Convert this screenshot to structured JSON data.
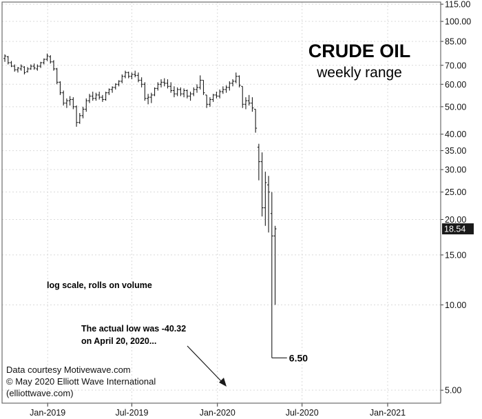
{
  "chart_data": {
    "type": "ohlc",
    "title": "CRUDE OIL",
    "subtitle": "weekly range",
    "scale": "log",
    "ylim": [
      4.5,
      117
    ],
    "y_axis_position": "right",
    "y_ticks": [
      "115.00",
      "100.00",
      "85.00",
      "70.00",
      "60.00",
      "50.00",
      "40.00",
      "35.00",
      "30.00",
      "25.00",
      "20.00",
      "15.00",
      "10.00",
      "5.00"
    ],
    "x_ticks": [
      "Jan-2019",
      "Jul-2019",
      "Jan-2020",
      "Jul-2020",
      "Jan-2021"
    ],
    "x_tick_dates": [
      "2019-01-01",
      "2019-07-01",
      "2020-01-01",
      "2020-07-01",
      "2021-01-01"
    ],
    "xlim": [
      "2018-09-25",
      "2021-04-25"
    ],
    "grid": true,
    "last_value_label": "18.54",
    "annotations": {
      "scale_note": "log scale, rolls on volume",
      "low_note_line1": "The actual low was -40.32",
      "low_note_line2": "on April 20, 2020...",
      "low_value": "6.50"
    },
    "credits": {
      "line1": "Data courtesy Motivewave.com",
      "line2": "© May 2020 Elliott Wave International",
      "line3": "(elliottwave.com)"
    },
    "weekly_bars": [
      {
        "date": "2018-10-01",
        "high": 76.5,
        "low": 72.0,
        "open": 74.0,
        "close": 75.5
      },
      {
        "date": "2018-10-08",
        "high": 75.5,
        "low": 70.5,
        "open": 75.0,
        "close": 71.5
      },
      {
        "date": "2018-10-15",
        "high": 72.5,
        "low": 69.0,
        "open": 71.5,
        "close": 69.5
      },
      {
        "date": "2018-10-22",
        "high": 70.5,
        "low": 66.5,
        "open": 69.5,
        "close": 67.5
      },
      {
        "date": "2018-10-29",
        "high": 69.0,
        "low": 66.0,
        "open": 67.5,
        "close": 68.5
      },
      {
        "date": "2018-11-05",
        "high": 70.5,
        "low": 67.0,
        "open": 68.0,
        "close": 69.5
      },
      {
        "date": "2018-11-12",
        "high": 69.5,
        "low": 65.0,
        "open": 69.0,
        "close": 66.0
      },
      {
        "date": "2018-11-19",
        "high": 69.0,
        "low": 66.0,
        "open": 66.5,
        "close": 68.0
      },
      {
        "date": "2018-11-26",
        "high": 70.5,
        "low": 67.5,
        "open": 68.0,
        "close": 69.5
      },
      {
        "date": "2018-12-03",
        "high": 71.0,
        "low": 67.5,
        "open": 69.5,
        "close": 68.5
      },
      {
        "date": "2018-12-10",
        "high": 70.5,
        "low": 67.0,
        "open": 68.0,
        "close": 69.5
      },
      {
        "date": "2018-12-17",
        "high": 72.0,
        "low": 68.5,
        "open": 69.5,
        "close": 71.5
      },
      {
        "date": "2018-12-24",
        "high": 74.0,
        "low": 70.5,
        "open": 71.5,
        "close": 73.5
      },
      {
        "date": "2018-12-31",
        "high": 77.0,
        "low": 72.5,
        "open": 73.5,
        "close": 75.5
      },
      {
        "date": "2019-01-07",
        "high": 76.0,
        "low": 71.0,
        "open": 75.0,
        "close": 72.0
      },
      {
        "date": "2019-01-14",
        "high": 73.0,
        "low": 67.0,
        "open": 72.0,
        "close": 68.0
      },
      {
        "date": "2019-01-21",
        "high": 68.5,
        "low": 60.0,
        "open": 68.0,
        "close": 61.0
      },
      {
        "date": "2019-01-28",
        "high": 61.5,
        "low": 55.0,
        "open": 61.0,
        "close": 56.0
      },
      {
        "date": "2019-02-04",
        "high": 57.0,
        "low": 50.5,
        "open": 56.0,
        "close": 51.5
      },
      {
        "date": "2019-02-11",
        "high": 53.5,
        "low": 49.5,
        "open": 51.5,
        "close": 52.5
      },
      {
        "date": "2019-02-18",
        "high": 54.5,
        "low": 50.5,
        "open": 52.5,
        "close": 53.0
      },
      {
        "date": "2019-02-25",
        "high": 54.0,
        "low": 49.0,
        "open": 53.0,
        "close": 50.0
      },
      {
        "date": "2019-03-04",
        "high": 50.5,
        "low": 42.5,
        "open": 50.0,
        "close": 44.0
      },
      {
        "date": "2019-03-11",
        "high": 47.5,
        "low": 43.5,
        "open": 44.0,
        "close": 46.5
      },
      {
        "date": "2019-03-18",
        "high": 50.0,
        "low": 45.5,
        "open": 46.5,
        "close": 49.0
      },
      {
        "date": "2019-03-25",
        "high": 53.5,
        "low": 48.0,
        "open": 49.0,
        "close": 52.5
      },
      {
        "date": "2019-04-01",
        "high": 55.5,
        "low": 51.5,
        "open": 52.5,
        "close": 54.5
      },
      {
        "date": "2019-04-08",
        "high": 56.5,
        "low": 52.5,
        "open": 54.5,
        "close": 53.5
      },
      {
        "date": "2019-04-15",
        "high": 56.0,
        "low": 52.5,
        "open": 53.5,
        "close": 55.0
      },
      {
        "date": "2019-04-22",
        "high": 56.5,
        "low": 53.0,
        "open": 55.0,
        "close": 54.0
      },
      {
        "date": "2019-04-29",
        "high": 55.0,
        "low": 52.0,
        "open": 54.0,
        "close": 53.0
      },
      {
        "date": "2019-05-06",
        "high": 56.5,
        "low": 52.5,
        "open": 53.0,
        "close": 56.0
      },
      {
        "date": "2019-05-13",
        "high": 58.0,
        "low": 55.0,
        "open": 56.0,
        "close": 57.5
      },
      {
        "date": "2019-05-20",
        "high": 59.0,
        "low": 56.0,
        "open": 57.5,
        "close": 58.5
      },
      {
        "date": "2019-05-27",
        "high": 60.5,
        "low": 57.5,
        "open": 58.5,
        "close": 60.0
      },
      {
        "date": "2019-06-03",
        "high": 62.0,
        "low": 59.0,
        "open": 60.0,
        "close": 61.5
      },
      {
        "date": "2019-06-10",
        "high": 65.0,
        "low": 60.5,
        "open": 61.5,
        "close": 64.0
      },
      {
        "date": "2019-06-17",
        "high": 67.0,
        "low": 63.0,
        "open": 64.0,
        "close": 66.0
      },
      {
        "date": "2019-06-24",
        "high": 66.5,
        "low": 63.0,
        "open": 66.0,
        "close": 64.0
      },
      {
        "date": "2019-07-01",
        "high": 66.0,
        "low": 62.5,
        "open": 64.0,
        "close": 65.0
      },
      {
        "date": "2019-07-08",
        "high": 67.0,
        "low": 63.5,
        "open": 65.0,
        "close": 64.5
      },
      {
        "date": "2019-07-15",
        "high": 66.0,
        "low": 61.0,
        "open": 64.5,
        "close": 62.0
      },
      {
        "date": "2019-07-22",
        "high": 63.5,
        "low": 58.5,
        "open": 62.0,
        "close": 60.0
      },
      {
        "date": "2019-07-29",
        "high": 61.0,
        "low": 52.5,
        "open": 60.0,
        "close": 53.5
      },
      {
        "date": "2019-08-05",
        "high": 55.5,
        "low": 51.0,
        "open": 53.5,
        "close": 54.0
      },
      {
        "date": "2019-08-12",
        "high": 56.0,
        "low": 51.5,
        "open": 54.0,
        "close": 55.0
      },
      {
        "date": "2019-08-19",
        "high": 58.5,
        "low": 54.5,
        "open": 55.0,
        "close": 58.0
      },
      {
        "date": "2019-08-26",
        "high": 61.0,
        "low": 57.0,
        "open": 58.0,
        "close": 60.0
      },
      {
        "date": "2019-09-02",
        "high": 62.5,
        "low": 58.5,
        "open": 60.0,
        "close": 61.0
      },
      {
        "date": "2019-09-09",
        "high": 63.0,
        "low": 59.0,
        "open": 61.0,
        "close": 60.5
      },
      {
        "date": "2019-09-16",
        "high": 62.5,
        "low": 58.0,
        "open": 60.5,
        "close": 59.0
      },
      {
        "date": "2019-09-23",
        "high": 61.0,
        "low": 56.0,
        "open": 59.0,
        "close": 57.0
      },
      {
        "date": "2019-09-30",
        "high": 59.0,
        "low": 54.0,
        "open": 57.0,
        "close": 55.5
      },
      {
        "date": "2019-10-07",
        "high": 58.5,
        "low": 54.5,
        "open": 55.5,
        "close": 57.5
      },
      {
        "date": "2019-10-14",
        "high": 58.5,
        "low": 54.5,
        "open": 57.5,
        "close": 55.5
      },
      {
        "date": "2019-10-21",
        "high": 58.0,
        "low": 54.0,
        "open": 55.5,
        "close": 57.0
      },
      {
        "date": "2019-10-28",
        "high": 57.5,
        "low": 53.5,
        "open": 57.0,
        "close": 54.5
      },
      {
        "date": "2019-11-04",
        "high": 56.5,
        "low": 52.5,
        "open": 54.5,
        "close": 55.5
      },
      {
        "date": "2019-11-11",
        "high": 58.5,
        "low": 54.5,
        "open": 55.5,
        "close": 57.5
      },
      {
        "date": "2019-11-18",
        "high": 60.0,
        "low": 56.0,
        "open": 57.5,
        "close": 58.5
      },
      {
        "date": "2019-11-25",
        "high": 64.5,
        "low": 57.5,
        "open": 58.5,
        "close": 62.0
      },
      {
        "date": "2019-12-02",
        "high": 62.0,
        "low": 55.0,
        "open": 62.0,
        "close": 56.0
      },
      {
        "date": "2019-12-09",
        "high": 55.0,
        "low": 49.5,
        "open": 55.0,
        "close": 51.0
      },
      {
        "date": "2019-12-16",
        "high": 54.0,
        "low": 50.0,
        "open": 51.0,
        "close": 53.0
      },
      {
        "date": "2019-12-23",
        "high": 55.5,
        "low": 52.0,
        "open": 53.0,
        "close": 55.0
      },
      {
        "date": "2019-12-30",
        "high": 56.5,
        "low": 53.5,
        "open": 55.0,
        "close": 54.5
      },
      {
        "date": "2020-01-06",
        "high": 57.5,
        "low": 53.5,
        "open": 54.5,
        "close": 56.5
      },
      {
        "date": "2020-01-13",
        "high": 59.0,
        "low": 55.5,
        "open": 56.5,
        "close": 57.5
      },
      {
        "date": "2020-01-20",
        "high": 59.5,
        "low": 56.0,
        "open": 57.5,
        "close": 58.5
      },
      {
        "date": "2020-01-27",
        "high": 61.5,
        "low": 57.0,
        "open": 58.5,
        "close": 60.5
      },
      {
        "date": "2020-02-03",
        "high": 62.5,
        "low": 59.0,
        "open": 60.5,
        "close": 61.5
      },
      {
        "date": "2020-02-10",
        "high": 66.0,
        "low": 60.5,
        "open": 61.5,
        "close": 64.0
      },
      {
        "date": "2020-02-17",
        "high": 64.5,
        "low": 58.5,
        "open": 64.0,
        "close": 59.5
      },
      {
        "date": "2020-02-24",
        "high": 59.0,
        "low": 49.5,
        "open": 59.0,
        "close": 51.0
      },
      {
        "date": "2020-03-02",
        "high": 54.0,
        "low": 49.0,
        "open": 51.0,
        "close": 52.5
      },
      {
        "date": "2020-03-09",
        "high": 55.0,
        "low": 50.5,
        "open": 52.5,
        "close": 51.5
      },
      {
        "date": "2020-03-16",
        "high": 54.0,
        "low": 48.0,
        "open": 51.5,
        "close": 49.5
      },
      {
        "date": "2020-03-23",
        "high": 49.0,
        "low": 40.5,
        "open": 49.0,
        "close": 42.0
      },
      {
        "date": "2020-03-30",
        "high": 37.0,
        "low": 27.5,
        "open": 36.0,
        "close": 32.0
      },
      {
        "date": "2020-04-06",
        "high": 34.5,
        "low": 20.5,
        "open": 32.0,
        "close": 22.0
      },
      {
        "date": "2020-04-13",
        "high": 29.5,
        "low": 19.0,
        "open": 22.0,
        "close": 27.0
      },
      {
        "date": "2020-04-20",
        "high": 28.5,
        "low": 18.0,
        "open": 26.5,
        "close": 25.0
      },
      {
        "date": "2020-04-27",
        "high": 25.0,
        "low": 6.5,
        "open": 21.0,
        "close": 17.5
      },
      {
        "date": "2020-05-04",
        "high": 19.0,
        "low": 10.0,
        "open": 17.5,
        "close": 18.54
      }
    ]
  }
}
